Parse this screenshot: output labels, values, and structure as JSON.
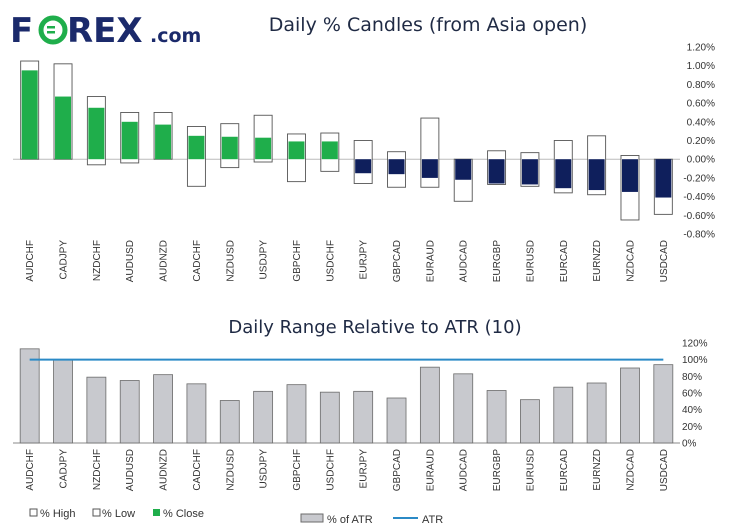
{
  "brand": {
    "logo_text_a": "F",
    "logo_text_b": "REX",
    "logo_suffix": ".com",
    "colors": {
      "navy": "#1b2a6b",
      "green": "#1fae4b"
    }
  },
  "colors": {
    "close_positive": "#1fae4b",
    "close_negative": "#0f1f5c",
    "range_box_stroke": "#555555",
    "bar_fill": "#c8c9ce",
    "bar_stroke": "#6b6b6b",
    "atr_line": "#2b8ac6"
  },
  "chart_data": [
    {
      "type": "candle",
      "title": "Daily % Candles (from Asia open)",
      "categories": [
        "AUDCHF",
        "CADJPY",
        "NZDCHF",
        "AUDUSD",
        "AUDNZD",
        "CADCHF",
        "NZDUSD",
        "USDJPY",
        "GBPCHF",
        "USDCHF",
        "EURJPY",
        "GBPCAD",
        "EURAUD",
        "AUDCAD",
        "EURGBP",
        "EURUSD",
        "EURCAD",
        "EURNZD",
        "NZDCAD",
        "USDCAD"
      ],
      "high": [
        1.05,
        1.02,
        0.67,
        0.5,
        0.5,
        0.35,
        0.38,
        0.47,
        0.27,
        0.28,
        0.2,
        0.08,
        0.44,
        0.0,
        0.09,
        0.07,
        0.2,
        0.25,
        0.04,
        0.0
      ],
      "low": [
        0.0,
        0.0,
        -0.06,
        -0.04,
        0.0,
        -0.29,
        -0.09,
        -0.03,
        -0.24,
        -0.13,
        -0.26,
        -0.3,
        -0.3,
        -0.45,
        -0.27,
        -0.29,
        -0.36,
        -0.38,
        -0.65,
        -0.59
      ],
      "close": [
        0.95,
        0.67,
        0.55,
        0.4,
        0.37,
        0.25,
        0.24,
        0.23,
        0.19,
        0.19,
        -0.15,
        -0.16,
        -0.2,
        -0.22,
        -0.26,
        -0.27,
        -0.31,
        -0.33,
        -0.35,
        -0.41
      ],
      "y_ticks": [
        "1.20%",
        "1.00%",
        "0.80%",
        "0.60%",
        "0.40%",
        "0.20%",
        "0.00%",
        "-0.20%",
        "-0.40%",
        "-0.60%",
        "-0.80%"
      ],
      "ylim": [
        -0.8,
        1.2
      ]
    },
    {
      "type": "bar",
      "title": "Daily Range Relative to ATR (10)",
      "categories": [
        "AUDCHF",
        "CADJPY",
        "NZDCHF",
        "AUDUSD",
        "AUDNZD",
        "CADCHF",
        "NZDUSD",
        "USDJPY",
        "GBPCHF",
        "USDCHF",
        "EURJPY",
        "GBPCAD",
        "EURAUD",
        "AUDCAD",
        "EURGBP",
        "EURUSD",
        "EURCAD",
        "EURNZD",
        "NZDCAD",
        "USDCAD"
      ],
      "values": [
        113,
        100,
        79,
        75,
        82,
        71,
        51,
        62,
        70,
        61,
        62,
        54,
        91,
        83,
        63,
        52,
        67,
        72,
        90,
        94
      ],
      "atr": 100,
      "y_ticks": [
        "0%",
        "20%",
        "40%",
        "60%",
        "80%",
        "100%",
        "120%"
      ],
      "ylim": [
        0,
        120
      ]
    }
  ],
  "legends": {
    "top": {
      "high": "% High",
      "low": "% Low",
      "close": "% Close"
    },
    "bottom": {
      "bar": "% of ATR",
      "line": "ATR"
    }
  }
}
